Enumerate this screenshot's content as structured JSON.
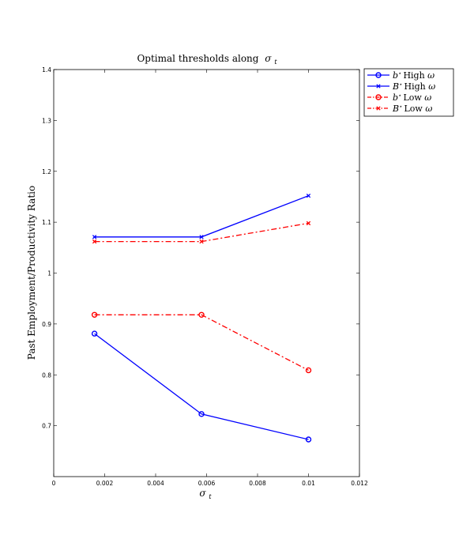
{
  "chart_data": {
    "type": "line",
    "title": "Optimal thresholds along",
    "title_symbol": "σ",
    "title_subscript": "t",
    "xlabel_symbol": "σ",
    "xlabel_subscript": "t",
    "ylabel": "Past Employment/Productivity Ratio",
    "xlim": [
      0,
      0.012
    ],
    "ylim": [
      0.6,
      1.4
    ],
    "xticks": [
      0,
      0.002,
      0.004,
      0.006,
      0.008,
      0.01,
      0.012
    ],
    "xtick_labels": [
      "0",
      "0.002",
      "0.004",
      "0.006",
      "0.008",
      "0.01",
      "0.012"
    ],
    "yticks": [
      0.7,
      0.8,
      0.9,
      1.0,
      1.1,
      1.2,
      1.3,
      1.4
    ],
    "ytick_labels": [
      "0.7",
      "0.8",
      "0.9",
      "1",
      "1.1",
      "1.2",
      "1.3",
      "1.4"
    ],
    "grid": false,
    "legend_position": "outside-top-right",
    "x": [
      0.0016,
      0.0058,
      0.01
    ],
    "series": [
      {
        "name": "b* High ω",
        "sym": "b",
        "rest": "High ",
        "omega": "ω",
        "values": [
          0.881,
          0.723,
          0.673
        ],
        "color": "#0000ff",
        "linestyle": "solid",
        "marker": "circle"
      },
      {
        "name": "B* High ω",
        "sym": "B",
        "rest": "High ",
        "omega": "ω",
        "values": [
          1.071,
          1.071,
          1.152
        ],
        "color": "#0000ff",
        "linestyle": "solid",
        "marker": "x"
      },
      {
        "name": "b* Low ω",
        "sym": "b",
        "rest": "Low ",
        "omega": "ω",
        "values": [
          0.918,
          0.918,
          0.809
        ],
        "color": "#ff0000",
        "linestyle": "dashdot",
        "marker": "circle"
      },
      {
        "name": "B* Low ω",
        "sym": "B",
        "rest": "Low ",
        "omega": "ω",
        "values": [
          1.062,
          1.062,
          1.098
        ],
        "color": "#ff0000",
        "linestyle": "dashdot",
        "marker": "x"
      }
    ]
  }
}
